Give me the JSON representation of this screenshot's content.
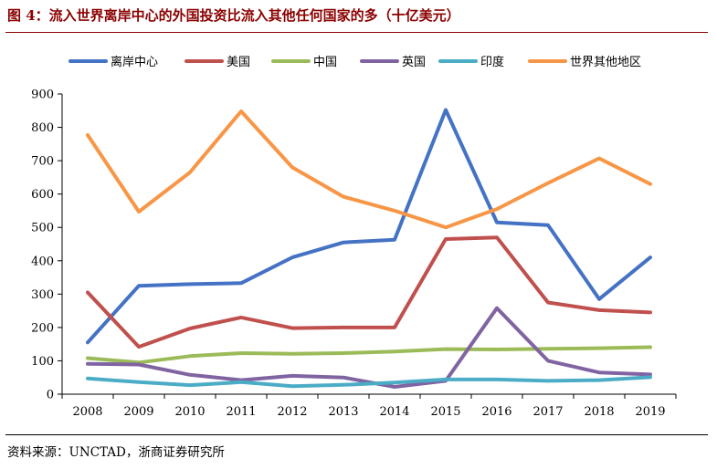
{
  "title": "图 4：流入世界离岸中心的外国投资比流入其他任何国家的多（十亿美元）",
  "source": "资料来源：UNCTAD，浙商证券研究所",
  "chart_data": {
    "type": "line",
    "title": "流入世界离岸中心的外国投资比流入其他任何国家的多（十亿美元）",
    "xlabel": "",
    "ylabel": "",
    "categories": [
      "2008",
      "2009",
      "2010",
      "2011",
      "2012",
      "2013",
      "2014",
      "2015",
      "2016",
      "2017",
      "2018",
      "2019"
    ],
    "ylim": [
      0,
      900
    ],
    "yticks": [
      0,
      100,
      200,
      300,
      400,
      500,
      600,
      700,
      800,
      900
    ],
    "legend_position": "top",
    "series": [
      {
        "name": "离岸中心",
        "color": "#4472C4",
        "values": [
          155,
          325,
          330,
          333,
          410,
          455,
          463,
          852,
          515,
          507,
          285,
          410
        ]
      },
      {
        "name": "美国",
        "color": "#C0504D",
        "values": [
          305,
          142,
          197,
          230,
          198,
          200,
          200,
          465,
          470,
          275,
          252,
          245
        ]
      },
      {
        "name": "中国",
        "color": "#9BBB59",
        "values": [
          108,
          95,
          114,
          123,
          121,
          123,
          128,
          135,
          134,
          136,
          138,
          141
        ]
      },
      {
        "name": "英国",
        "color": "#8064A2",
        "values": [
          91,
          89,
          58,
          42,
          55,
          50,
          22,
          40,
          258,
          100,
          65,
          59
        ]
      },
      {
        "name": "印度",
        "color": "#4BACC6",
        "values": [
          47,
          36,
          27,
          36,
          24,
          28,
          35,
          44,
          44,
          40,
          42,
          51
        ]
      },
      {
        "name": "世界其他地区",
        "color": "#F79646",
        "values": [
          777,
          547,
          665,
          848,
          680,
          592,
          550,
          500,
          555,
          633,
          707,
          630
        ]
      }
    ]
  }
}
